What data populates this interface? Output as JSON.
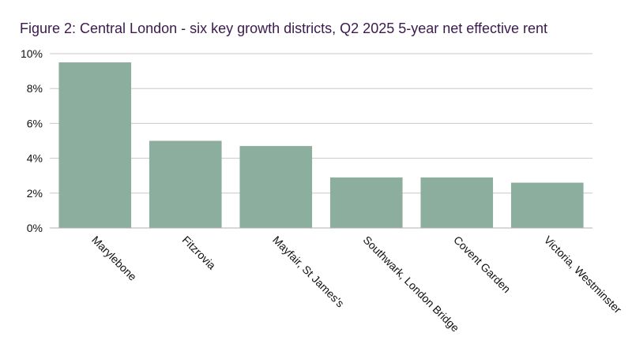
{
  "chart_data": {
    "type": "bar",
    "title": "Figure 2: Central London - six key growth districts, Q2 2025 5-year net effective rent",
    "categories": [
      "Marylebone",
      "Fitzrovia",
      "Mayfair, St James's",
      "Southwark, London Bridge",
      "Covent Garden",
      "Victoria, Westminster"
    ],
    "values": [
      9.5,
      5.0,
      4.7,
      2.9,
      2.9,
      2.6
    ],
    "value_unit": "%",
    "ylim": [
      0,
      10
    ],
    "yticks": [
      0,
      2,
      4,
      6,
      8,
      10
    ],
    "ytick_labels": [
      "0%",
      "2%",
      "4%",
      "6%",
      "8%",
      "10%"
    ],
    "xlabel": "",
    "ylabel": "",
    "grid": true,
    "legend": "none",
    "bar_color": "#8cae9e",
    "grid_color": "#c8c8c8",
    "title_color": "#3b1a4d"
  }
}
